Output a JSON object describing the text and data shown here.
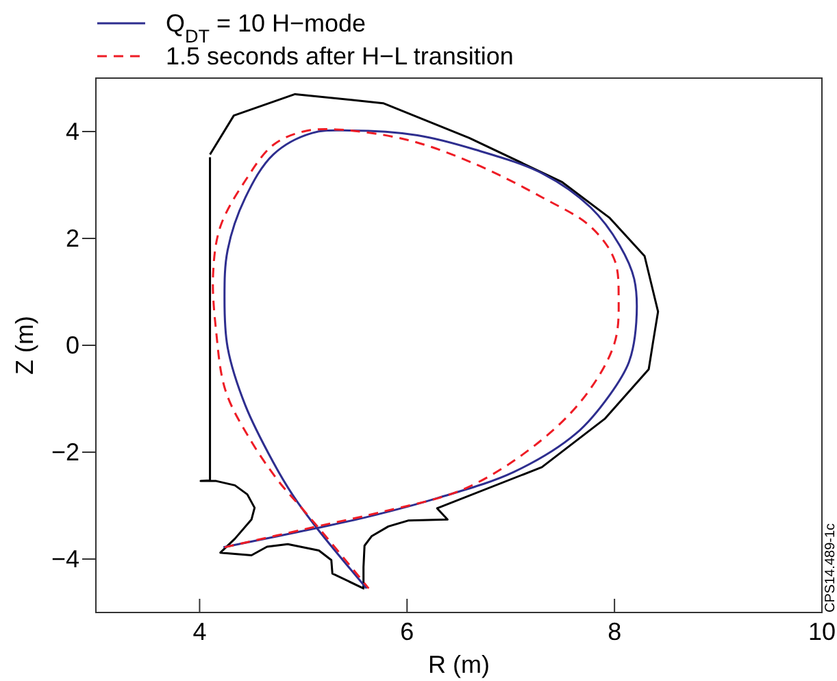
{
  "chart_data": {
    "type": "line",
    "xlabel": "R (m)",
    "ylabel": "Z (m)",
    "xlim": [
      3,
      10
    ],
    "ylim": [
      -5,
      5
    ],
    "xticks": [
      4,
      6,
      8,
      10
    ],
    "yticks": [
      -4,
      -2,
      0,
      2,
      4
    ],
    "grid": false,
    "legend": "top left",
    "annotations": [
      "CPS14.489-1c"
    ],
    "series": [
      {
        "color": "#000000",
        "line_style": "solid",
        "x": [
          4.1,
          4.33,
          4.92,
          5.77,
          6.6,
          7.49,
          7.95,
          8.29,
          8.42,
          8.37,
          8.33,
          7.91,
          7.3,
          6.29,
          6.39,
          6.01,
          5.82,
          5.66,
          5.59,
          5.58,
          5.58,
          5.28,
          5.27,
          5.15,
          4.85,
          4.65,
          4.5,
          4.2,
          4.34,
          4.5,
          4.53,
          4.46,
          4.34,
          4.16,
          4.01,
          4.1,
          4.1,
          4.1
        ],
        "values": [
          3.57,
          4.3,
          4.7,
          4.53,
          3.88,
          3.06,
          2.39,
          1.67,
          0.63,
          0.04,
          -0.45,
          -1.37,
          -2.28,
          -3.05,
          -3.26,
          -3.28,
          -3.39,
          -3.57,
          -3.75,
          -4.15,
          -4.55,
          -4.27,
          -4.02,
          -3.84,
          -3.72,
          -3.77,
          -3.93,
          -3.88,
          -3.62,
          -3.26,
          -3.04,
          -2.79,
          -2.62,
          -2.54,
          -2.54,
          -2.53,
          0.04,
          3.52
        ]
      },
      {
        "name": "Q$_{DT}$ = 10 H−mode",
        "color": "#2e2e8f",
        "line_style": "solid",
        "x": [
          4.23,
          5.13,
          5.64,
          6.29,
          7.03,
          7.63,
          7.95,
          8.14,
          8.21,
          8.19,
          8.05,
          7.77,
          7.31,
          6.66,
          6.1,
          5.45,
          5.08,
          4.71,
          4.44,
          4.27,
          4.24,
          4.27,
          4.44,
          4.71,
          4.9,
          5.13,
          5.61
        ],
        "values": [
          -3.78,
          -3.42,
          -3.2,
          -2.86,
          -2.37,
          -1.65,
          -0.94,
          -0.31,
          0.43,
          1.24,
          1.87,
          2.58,
          3.21,
          3.66,
          3.93,
          4.02,
          3.97,
          3.57,
          2.76,
          1.78,
          0.88,
          -0.04,
          -1.12,
          -2.19,
          -2.81,
          -3.42,
          -4.55
        ]
      },
      {
        "name": "1.5 seconds after H−L transition",
        "color": "#ee1c25",
        "line_style": "dashed",
        "x": [
          4.24,
          5.13,
          5.73,
          6.56,
          7.26,
          7.72,
          8.0,
          8.04,
          8.0,
          7.77,
          7.31,
          6.66,
          6.01,
          5.31,
          5.0,
          4.71,
          4.44,
          4.2,
          4.13,
          4.16,
          4.25,
          4.48,
          4.76,
          5.0,
          5.27,
          5.63
        ],
        "values": [
          -3.78,
          -3.39,
          -3.13,
          -2.68,
          -1.83,
          -0.94,
          0.04,
          0.88,
          1.6,
          2.22,
          2.76,
          3.39,
          3.84,
          4.04,
          4.0,
          3.75,
          3.08,
          2.22,
          1.33,
          0.25,
          -0.85,
          -1.74,
          -2.54,
          -3.08,
          -3.7,
          -4.55
        ]
      }
    ]
  }
}
